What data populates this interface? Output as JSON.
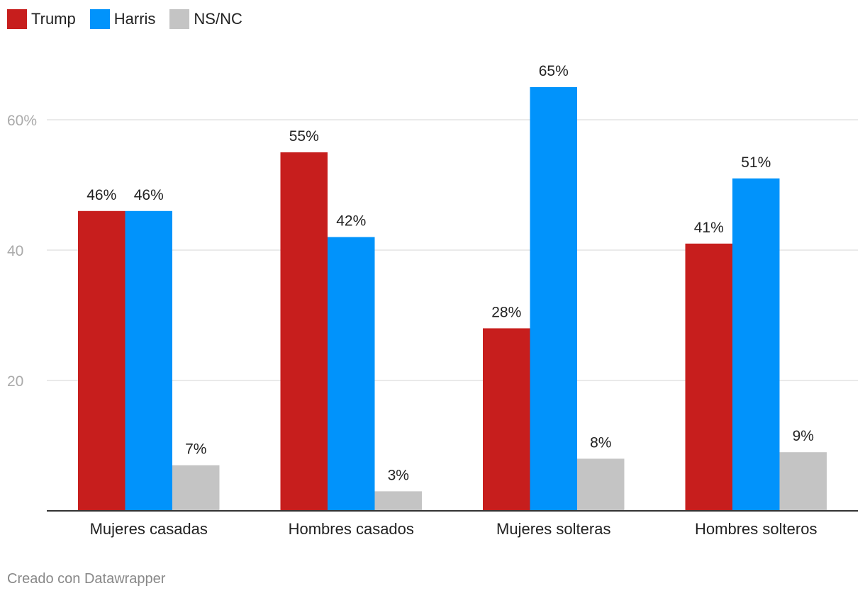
{
  "chart_data": {
    "type": "bar",
    "categories": [
      "Mujeres casadas",
      "Hombres casados",
      "Mujeres solteras",
      "Hombres solteros"
    ],
    "series": [
      {
        "name": "Trump",
        "color": "#c71e1d",
        "values": [
          46,
          55,
          28,
          41
        ]
      },
      {
        "name": "Harris",
        "color": "#0193fb",
        "values": [
          46,
          42,
          65,
          51
        ]
      },
      {
        "name": "NS/NC",
        "color": "#c4c4c4",
        "values": [
          7,
          3,
          8,
          9
        ]
      }
    ],
    "value_suffix": "%",
    "ylim": [
      0,
      70
    ],
    "yticks": [
      {
        "value": 20,
        "label": "20"
      },
      {
        "value": 40,
        "label": "40"
      },
      {
        "value": 60,
        "label": "60%"
      }
    ],
    "grid": true,
    "legend_position": "top-left",
    "title": "",
    "xlabel": "",
    "ylabel": ""
  },
  "footer": {
    "credit": "Creado con Datawrapper"
  }
}
